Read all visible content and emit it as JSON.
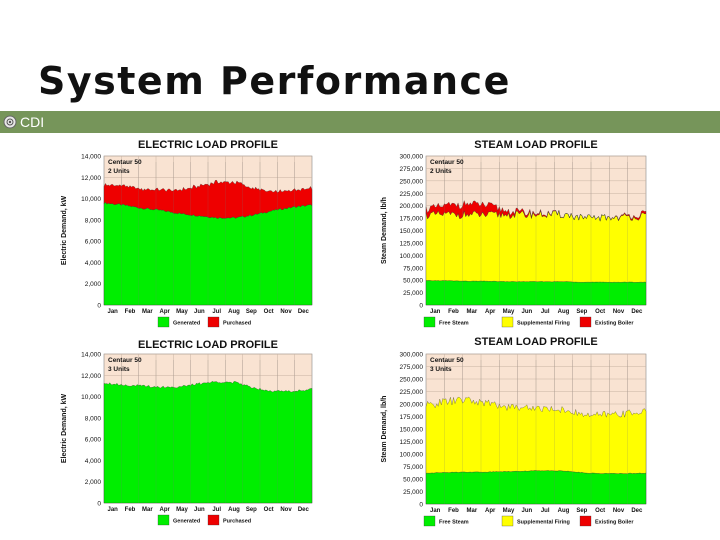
{
  "slide": {
    "title": "System Performance",
    "brand_label": "CDI",
    "colors": {
      "band": "#76955a",
      "plot_bg": "#f9e3d2",
      "generated": "#00ee00",
      "purchased": "#ee0000",
      "free_steam": "#00ee00",
      "supplemental": "#ffff00",
      "existing_boiler": "#ee0000"
    }
  },
  "chart_data": [
    {
      "type": "area",
      "title": "ELECTRIC LOAD PROFILE",
      "subtitle": [
        "Centaur 50",
        "2 Units"
      ],
      "xlabel": "",
      "ylabel": "Electric Demand, kW",
      "categories": [
        "Jan",
        "Feb",
        "Mar",
        "Apr",
        "May",
        "Jun",
        "Jul",
        "Aug",
        "Sep",
        "Oct",
        "Nov",
        "Dec"
      ],
      "yticks": [
        "14,000",
        "12,000",
        "10,000",
        "8,000",
        "6,000",
        "4,000",
        "2,000",
        "0"
      ],
      "ylim": [
        0,
        14000
      ],
      "stacked": true,
      "series": [
        {
          "name": "Generated",
          "color": "#00ee00",
          "values": [
            9600,
            9400,
            9100,
            8900,
            8600,
            8400,
            8200,
            8200,
            8500,
            8900,
            9200,
            9400
          ]
        },
        {
          "name": "Purchased",
          "color": "#ee0000",
          "values": [
            1700,
            1800,
            1800,
            1900,
            2200,
            2800,
            3400,
            3300,
            2400,
            1700,
            1600,
            1600
          ]
        }
      ],
      "legend": [
        "Generated",
        "Purchased"
      ],
      "grid": true
    },
    {
      "type": "area",
      "title": "STEAM LOAD PROFILE",
      "subtitle": [
        "Centaur 50",
        "2 Units"
      ],
      "xlabel": "",
      "ylabel": "Steam Demand, lb/h",
      "categories": [
        "Jan",
        "Feb",
        "Mar",
        "Apr",
        "May",
        "Jun",
        "Jul",
        "Aug",
        "Sep",
        "Oct",
        "Nov",
        "Dec"
      ],
      "yticks": [
        "300,000",
        "275,000",
        "250,000",
        "225,000",
        "200,000",
        "175,000",
        "150,000",
        "125,000",
        "100,000",
        "75,000",
        "50,000",
        "25,000",
        "0"
      ],
      "ylim": [
        0,
        300000
      ],
      "stacked": true,
      "series": [
        {
          "name": "Free Steam",
          "color": "#00ee00",
          "values": [
            49000,
            49000,
            48000,
            48000,
            47000,
            47000,
            47000,
            47000,
            46000,
            46000,
            46000,
            46000
          ]
        },
        {
          "name": "Supplemental Firing",
          "color": "#ffff00",
          "values": [
            132000,
            133000,
            134000,
            133000,
            135000,
            135000,
            135000,
            135000,
            128000,
            130000,
            131000,
            133000
          ]
        },
        {
          "name": "Existing Boiler",
          "color": "#ee0000",
          "values": [
            12000,
            18000,
            22000,
            20000,
            8000,
            4000,
            2000,
            0,
            0,
            0,
            2000,
            5000
          ]
        }
      ],
      "legend": [
        "Free Steam",
        "Supplemental Firing",
        "Existing Boiler"
      ],
      "grid": true
    },
    {
      "type": "area",
      "title": "ELECTRIC LOAD PROFILE",
      "subtitle": [
        "Centaur 50",
        "3 Units"
      ],
      "xlabel": "",
      "ylabel": "Electric Demand, kW",
      "categories": [
        "Jan",
        "Feb",
        "Mar",
        "Apr",
        "May",
        "Jun",
        "Jul",
        "Aug",
        "Sep",
        "Oct",
        "Nov",
        "Dec"
      ],
      "yticks": [
        "14,000",
        "12,000",
        "10,000",
        "8,000",
        "6,000",
        "4,000",
        "2,000",
        "0"
      ],
      "ylim": [
        0,
        14000
      ],
      "stacked": true,
      "series": [
        {
          "name": "Generated",
          "color": "#00ee00",
          "values": [
            11300,
            11100,
            11000,
            10900,
            10900,
            11200,
            11400,
            11300,
            10800,
            10500,
            10500,
            10700
          ]
        },
        {
          "name": "Purchased",
          "color": "#ee0000",
          "values": [
            0,
            0,
            0,
            0,
            0,
            0,
            0,
            0,
            0,
            0,
            0,
            0
          ]
        }
      ],
      "legend": [
        "Generated",
        "Purchased"
      ],
      "grid": true
    },
    {
      "type": "area",
      "title": "STEAM LOAD PROFILE",
      "subtitle": [
        "Centaur 50",
        "3 Units"
      ],
      "xlabel": "",
      "ylabel": "Steam Demand, lb/h",
      "categories": [
        "Jan",
        "Feb",
        "Mar",
        "Apr",
        "May",
        "Jun",
        "Jul",
        "Aug",
        "Sep",
        "Oct",
        "Nov",
        "Dec"
      ],
      "yticks": [
        "300,000",
        "275,000",
        "250,000",
        "225,000",
        "200,000",
        "175,000",
        "150,000",
        "125,000",
        "100,000",
        "75,000",
        "50,000",
        "25,000",
        "0"
      ],
      "ylim": [
        0,
        300000
      ],
      "stacked": true,
      "series": [
        {
          "name": "Free Steam",
          "color": "#00ee00",
          "values": [
            62000,
            63000,
            64000,
            64000,
            65000,
            66000,
            67000,
            66000,
            62000,
            61000,
            61000,
            62000
          ]
        },
        {
          "name": "Supplemental Firing",
          "color": "#ffff00",
          "values": [
            135000,
            142000,
            144000,
            138000,
            130000,
            127000,
            124000,
            122000,
            115000,
            118000,
            120000,
            125000
          ]
        },
        {
          "name": "Existing Boiler",
          "color": "#ee0000",
          "values": [
            0,
            0,
            0,
            0,
            0,
            0,
            0,
            0,
            0,
            0,
            0,
            0
          ]
        }
      ],
      "legend": [
        "Free Steam",
        "Supplemental Firing",
        "Existing Boiler"
      ],
      "grid": true
    }
  ]
}
